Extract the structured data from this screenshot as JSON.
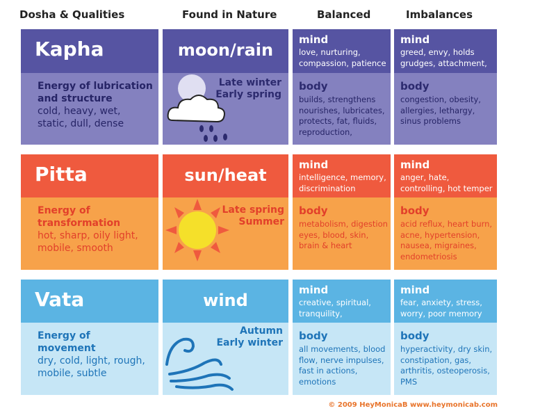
{
  "headers": {
    "dosha": "Dosha & Qualities",
    "nature": "Found in Nature",
    "balanced": "Balanced",
    "imbalances": "Imbalances"
  },
  "kapha": {
    "name": "Kapha",
    "energy": "Energy of lubrication and structure",
    "qualities": "cold, heavy, wet, static, dull, dense",
    "nature": "moon/rain",
    "season": "Late winter\nEarly spring",
    "balanced_mind_h": "mind",
    "balanced_mind": "love, nurturing, compassion, patience",
    "balanced_body_h": "body",
    "balanced_body": "builds, strengthens nourishes, lubricates, protects, fat, fluids, reproduction,",
    "imb_mind_h": "mind",
    "imb_mind": "greed, envy, holds grudges, attachment,",
    "imb_body_h": "body",
    "imb_body": "congestion, obesity, allergies, lethargy, sinus problems"
  },
  "pitta": {
    "name": "Pitta",
    "energy": "Energy of transformation",
    "qualities": "hot, sharp, oily light, mobile, smooth",
    "nature": "sun/heat",
    "season": "Late spring\nSummer",
    "balanced_mind_h": "mind",
    "balanced_mind": "intelligence, memory, discrimination",
    "balanced_body_h": "body",
    "balanced_body": "metabolism, digestion eyes, blood, skin, brain & heart",
    "imb_mind_h": "mind",
    "imb_mind": "anger, hate, controlling, hot temper",
    "imb_body_h": "body",
    "imb_body": "acid reflux, heart burn, acne, hypertension, nausea, migraines, endometriosis"
  },
  "vata": {
    "name": "Vata",
    "energy": "Energy of movement",
    "qualities": "dry, cold, light, rough, mobile, subtle",
    "nature": "wind",
    "season": "Autumn\nEarly winter",
    "balanced_mind_h": "mind",
    "balanced_mind": "creative, spiritual, tranquility,",
    "balanced_body_h": "body",
    "balanced_body": "all movements, blood flow, nerve impulses, fast in actions, emotions",
    "imb_mind_h": "mind",
    "imb_mind": "fear, anxiety, stress, worry, poor memory",
    "imb_body_h": "body",
    "imb_body": "hyperactivity, dry skin, constipation, gas, arthritis, osteoperosis, PMS"
  },
  "footer": "© 2009 HeyMonicaB  www.heymonicab.com",
  "colors": {
    "kapha_dark": "#5654a2",
    "kapha_light": "#8481bf",
    "kapha_text": "#2c2a6e",
    "pitta_dark": "#ef5a3e",
    "pitta_light": "#f7a24a",
    "pitta_text": "#e2402a",
    "vata_dark": "#5bb4e3",
    "vata_light": "#c6e6f6",
    "vata_text": "#1e74b8"
  }
}
